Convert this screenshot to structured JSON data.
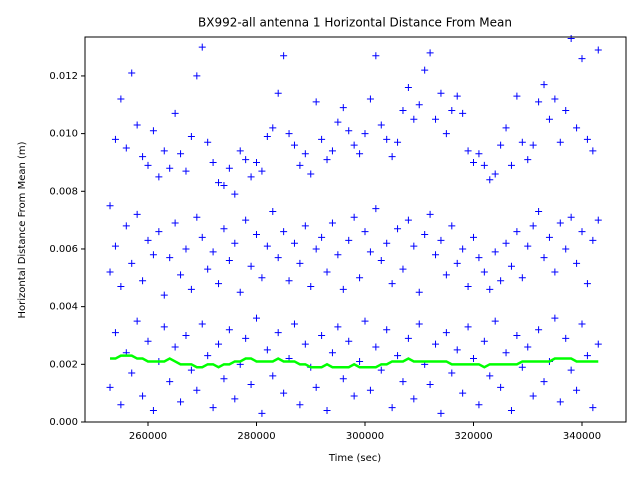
{
  "chart_data": {
    "type": "scatter",
    "title": "BX992-all antenna 1 Horizontal Distance From Mean",
    "xlabel": "Time (sec)",
    "ylabel": "Horizontal Distance From Mean (m)",
    "xlim": [
      248387,
      348111
    ],
    "ylim": [
      0,
      0.01335
    ],
    "xticks": [
      260000,
      280000,
      300000,
      320000,
      340000
    ],
    "yticks": [
      {
        "value": 0,
        "label": "0.000"
      },
      {
        "value": 0.002,
        "label": "0.002"
      },
      {
        "value": 0.004,
        "label": "0.004"
      },
      {
        "value": 0.006,
        "label": "0.006"
      },
      {
        "value": 0.008,
        "label": "0.008"
      },
      {
        "value": 0.01,
        "label": "0.010"
      },
      {
        "value": 0.012,
        "label": "0.012"
      }
    ],
    "x": [
      253000,
      254000,
      255000,
      256000,
      257000,
      258000,
      259000,
      260000,
      261000,
      262000,
      263000,
      264000,
      265000,
      266000,
      267000,
      268000,
      269000,
      270000,
      271000,
      272000,
      273000,
      274000,
      275000,
      276000,
      277000,
      278000,
      279000,
      280000,
      281000,
      282000,
      283000,
      284000,
      285000,
      286000,
      287000,
      288000,
      289000,
      290000,
      291000,
      292000,
      293000,
      294000,
      295000,
      296000,
      297000,
      298000,
      299000,
      300000,
      301000,
      302000,
      303000,
      304000,
      305000,
      306000,
      307000,
      308000,
      309000,
      310000,
      311000,
      312000,
      313000,
      314000,
      315000,
      316000,
      317000,
      318000,
      319000,
      320000,
      321000,
      322000,
      323000,
      324000,
      325000,
      326000,
      327000,
      328000,
      329000,
      330000,
      331000,
      332000,
      333000,
      334000,
      335000,
      336000,
      337000,
      338000,
      339000,
      340000,
      341000,
      342000,
      343000
    ],
    "series": [
      {
        "color": "#0000ff",
        "style": "plus",
        "values": [
          0.0075,
          0.0098,
          0.0112,
          0.0095,
          0.0121,
          0.0103,
          0.0092,
          0.0089,
          0.0101,
          0.0085,
          0.0094,
          0.0088,
          0.0107,
          0.0093,
          0.0087,
          0.0099,
          0.012,
          0.013,
          0.0097,
          0.009,
          0.0083,
          0.0082,
          0.0088,
          0.0079,
          0.0094,
          0.0091,
          0.0085,
          0.009,
          0.0087,
          0.0099,
          0.0102,
          0.0114,
          0.0127,
          0.01,
          0.0096,
          0.0089,
          0.0093,
          0.0086,
          0.0111,
          0.0098,
          0.0091,
          0.0094,
          0.0104,
          0.0109,
          0.0101,
          0.0096,
          0.0093,
          0.01,
          0.0112,
          0.0127,
          0.0103,
          0.0098,
          0.0092,
          0.0097,
          0.0108,
          0.0116,
          0.0105,
          0.011,
          0.0122,
          0.0128,
          0.0105,
          0.0114,
          0.01,
          0.0108,
          0.0113,
          0.0107,
          0.0094,
          0.009,
          0.0093,
          0.0089,
          0.0084,
          0.0086,
          0.0096,
          0.0102,
          0.0089,
          0.0113,
          0.0097,
          0.0091,
          0.0096,
          0.0111,
          0.0117,
          0.0105,
          0.0112,
          0.0097,
          0.0108,
          0.0133,
          0.0102,
          0.0126,
          0.0098,
          0.0094,
          0.0129
        ]
      },
      {
        "color": "#0000ff",
        "style": "plus",
        "values": [
          0.0052,
          0.0061,
          0.0047,
          0.0068,
          0.0055,
          0.0072,
          0.0049,
          0.0063,
          0.0058,
          0.0066,
          0.0044,
          0.0057,
          0.0069,
          0.0051,
          0.006,
          0.0046,
          0.0071,
          0.0064,
          0.0053,
          0.0059,
          0.0048,
          0.0067,
          0.0056,
          0.0062,
          0.0045,
          0.007,
          0.0054,
          0.0065,
          0.005,
          0.0061,
          0.0073,
          0.0057,
          0.0066,
          0.0049,
          0.0062,
          0.0055,
          0.0068,
          0.0047,
          0.006,
          0.0064,
          0.0052,
          0.0069,
          0.0058,
          0.0046,
          0.0063,
          0.0071,
          0.005,
          0.0066,
          0.0059,
          0.0074,
          0.0056,
          0.0062,
          0.0048,
          0.0067,
          0.0053,
          0.007,
          0.0061,
          0.0045,
          0.0065,
          0.0072,
          0.0058,
          0.0063,
          0.0051,
          0.0068,
          0.0055,
          0.006,
          0.0047,
          0.0064,
          0.0057,
          0.0052,
          0.0046,
          0.0059,
          0.0049,
          0.0062,
          0.0054,
          0.0066,
          0.005,
          0.0061,
          0.0068,
          0.0073,
          0.0057,
          0.0064,
          0.0052,
          0.0069,
          0.006,
          0.0071,
          0.0055,
          0.0066,
          0.0048,
          0.0063,
          0.007
        ]
      },
      {
        "color": "#0000ff",
        "style": "plus",
        "values": [
          0.0012,
          0.0031,
          0.0006,
          0.0024,
          0.0017,
          0.0035,
          0.0009,
          0.0028,
          0.0004,
          0.0021,
          0.0033,
          0.0014,
          0.0026,
          0.0007,
          0.003,
          0.0018,
          0.0011,
          0.0034,
          0.0023,
          0.0005,
          0.0027,
          0.0015,
          0.0032,
          0.0008,
          0.002,
          0.0029,
          0.0013,
          0.0036,
          0.0003,
          0.0025,
          0.0016,
          0.0031,
          0.001,
          0.0022,
          0.0034,
          0.0006,
          0.0027,
          0.0019,
          0.0012,
          0.003,
          0.0004,
          0.0024,
          0.0033,
          0.0015,
          0.0028,
          0.0009,
          0.0021,
          0.0035,
          0.0011,
          0.0026,
          0.0018,
          0.0032,
          0.0005,
          0.0023,
          0.0014,
          0.0029,
          0.0008,
          0.0034,
          0.002,
          0.0013,
          0.0027,
          0.0003,
          0.0031,
          0.0017,
          0.0025,
          0.001,
          0.0033,
          0.0022,
          0.0006,
          0.0028,
          0.0016,
          0.0035,
          0.0012,
          0.0024,
          0.0004,
          0.003,
          0.0019,
          0.0026,
          0.0009,
          0.0032,
          0.0014,
          0.0021,
          0.0036,
          0.0007,
          0.0029,
          0.0018,
          0.0011,
          0.0034,
          0.0023,
          0.0005,
          0.0027
        ]
      },
      {
        "color": "#00ff00",
        "style": "line",
        "values": [
          0.0022,
          0.0022,
          0.0023,
          0.0023,
          0.0023,
          0.0022,
          0.0022,
          0.0021,
          0.0021,
          0.0021,
          0.0021,
          0.0022,
          0.0021,
          0.002,
          0.002,
          0.002,
          0.0019,
          0.0019,
          0.002,
          0.002,
          0.0019,
          0.002,
          0.002,
          0.0021,
          0.0021,
          0.0022,
          0.0022,
          0.0021,
          0.0021,
          0.0021,
          0.0021,
          0.0022,
          0.0021,
          0.0021,
          0.0021,
          0.002,
          0.002,
          0.0019,
          0.0019,
          0.0019,
          0.002,
          0.0019,
          0.0019,
          0.0019,
          0.0019,
          0.002,
          0.0019,
          0.0019,
          0.0019,
          0.0019,
          0.002,
          0.002,
          0.0021,
          0.0021,
          0.0021,
          0.0022,
          0.0021,
          0.0021,
          0.0021,
          0.0021,
          0.0021,
          0.0021,
          0.0021,
          0.002,
          0.002,
          0.002,
          0.002,
          0.002,
          0.002,
          0.0019,
          0.002,
          0.002,
          0.002,
          0.002,
          0.002,
          0.002,
          0.0021,
          0.0021,
          0.0021,
          0.0021,
          0.0021,
          0.0021,
          0.0022,
          0.0022,
          0.0022,
          0.0022,
          0.0021,
          0.0021,
          0.0021,
          0.0021,
          0.0021
        ]
      }
    ]
  }
}
